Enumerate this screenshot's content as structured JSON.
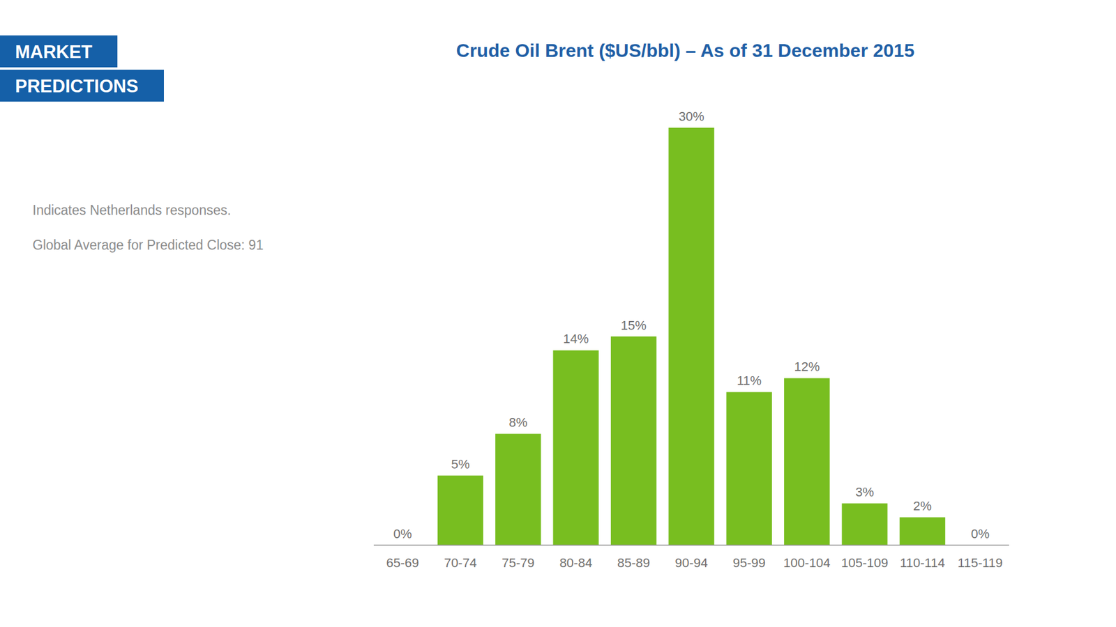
{
  "header": {
    "badges": [
      "MARKET",
      "PREDICTIONS"
    ]
  },
  "chart_data": {
    "type": "bar",
    "title": "Crude Oil Brent ($US/bbl) – As of 31 December 2015",
    "annotations": [
      "Indicates Netherlands responses.",
      "Global Average for Predicted Close: 91"
    ],
    "categories": [
      "65-69",
      "70-74",
      "75-79",
      "80-84",
      "85-89",
      "90-94",
      "95-99",
      "100-104",
      "105-109",
      "110-114",
      "115-119"
    ],
    "values": [
      0,
      5,
      8,
      14,
      15,
      30,
      11,
      12,
      3,
      2,
      0
    ],
    "value_labels": [
      "0%",
      "5%",
      "8%",
      "14%",
      "15%",
      "30%",
      "11%",
      "12%",
      "3%",
      "2%",
      "0%"
    ],
    "color": "#78be20",
    "ylim": [
      0,
      30
    ],
    "grid": false,
    "data_labels": true,
    "tick_labels": "x"
  }
}
